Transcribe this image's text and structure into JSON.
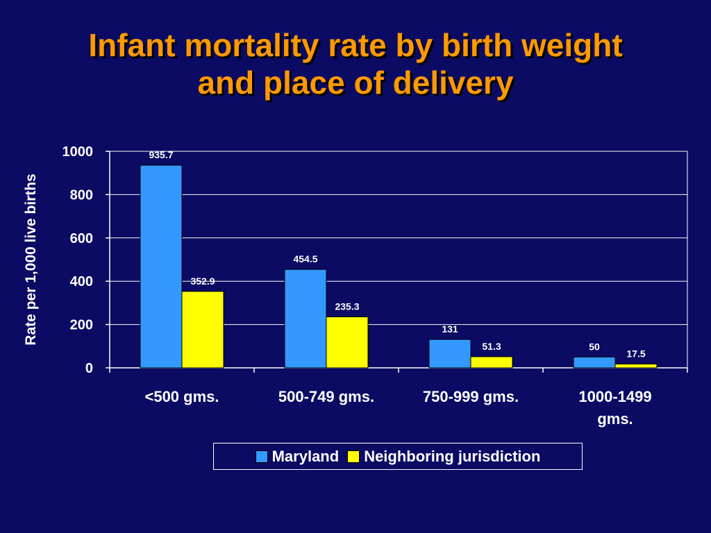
{
  "title": {
    "line1": "Infant mortality rate by birth weight",
    "line2": "and place of delivery"
  },
  "colors": {
    "background": "#0b0b63",
    "title": "#ff9900",
    "maryland": "#3399ff",
    "neighboring": "#ffff00",
    "text": "#ffffff"
  },
  "chart_data": {
    "type": "bar",
    "categories": [
      [
        "<500 gms."
      ],
      [
        "500-749 gms."
      ],
      [
        "750-999 gms."
      ],
      [
        "1000-1499",
        "gms."
      ]
    ],
    "series": [
      {
        "name": "Maryland",
        "values": [
          935.7,
          454.5,
          131,
          50
        ],
        "labels": [
          "935.7",
          "454.5",
          "131",
          "50"
        ]
      },
      {
        "name": "Neighboring jurisdiction",
        "values": [
          352.9,
          235.3,
          51.3,
          17.5
        ],
        "labels": [
          "352.9",
          "235.3",
          "51.3",
          "17.5"
        ]
      }
    ],
    "ylabel": "Rate per 1,000 live births",
    "xlabel": "",
    "ylim": [
      0,
      1000
    ],
    "yticks": [
      0,
      200,
      400,
      600,
      800,
      1000
    ],
    "ytick_labels": [
      "0",
      "200",
      "400",
      "600",
      "800",
      "1000"
    ],
    "grid": true,
    "legend": "bottom"
  }
}
